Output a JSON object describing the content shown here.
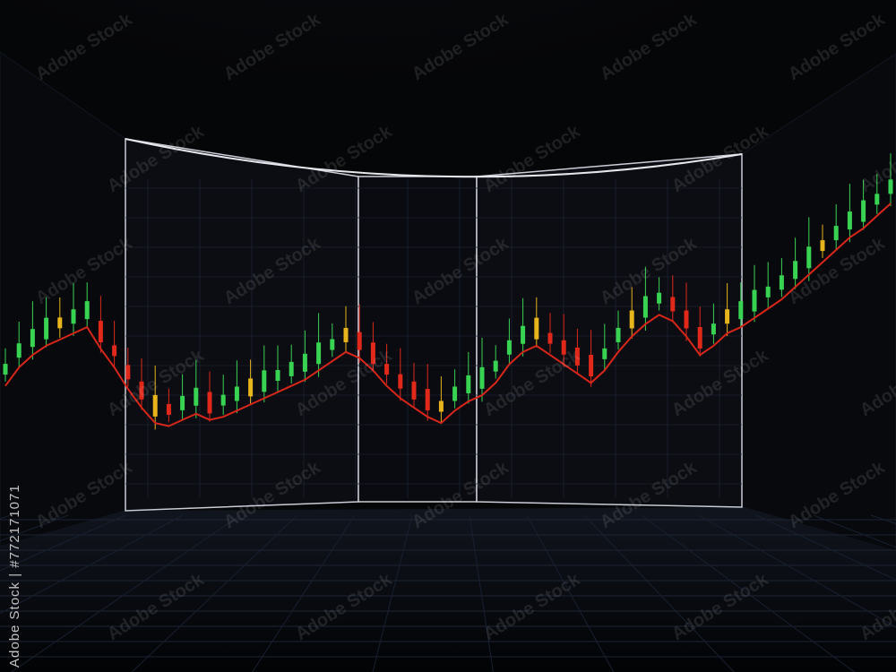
{
  "watermark": {
    "text": "Adobe Stock",
    "side_id": "Adobe Stock | #772171071"
  },
  "colors": {
    "background": "#050608",
    "panel": "#0b0d12",
    "grid": "#1c2230",
    "bull": "#39d353",
    "bear": "#e0281b",
    "neutral": "#e8b41c",
    "trend": "#d8261a",
    "frame": "#c9cdd6",
    "spotlight": "#ffffff"
  },
  "chart_data": {
    "type": "candlestick",
    "trend": "upward",
    "series": [
      {
        "values": [
          0.34,
          0.4,
          0.44,
          0.47,
          0.49,
          0.51,
          0.53,
          0.46,
          0.4,
          0.33,
          0.27,
          0.22,
          0.21,
          0.23,
          0.25,
          0.23,
          0.24,
          0.26,
          0.28,
          0.3,
          0.32,
          0.34,
          0.36,
          0.39,
          0.42,
          0.45,
          0.43,
          0.39,
          0.34,
          0.3,
          0.27,
          0.24,
          0.22,
          0.26,
          0.29,
          0.31,
          0.35,
          0.41,
          0.45,
          0.47,
          0.44,
          0.41,
          0.38,
          0.35,
          0.39,
          0.45,
          0.5,
          0.54,
          0.57,
          0.55,
          0.5,
          0.44,
          0.47,
          0.51,
          0.53,
          0.56,
          0.59,
          0.62,
          0.66,
          0.7,
          0.74,
          0.78,
          0.82,
          0.85,
          0.89,
          0.93
        ]
      }
    ]
  }
}
